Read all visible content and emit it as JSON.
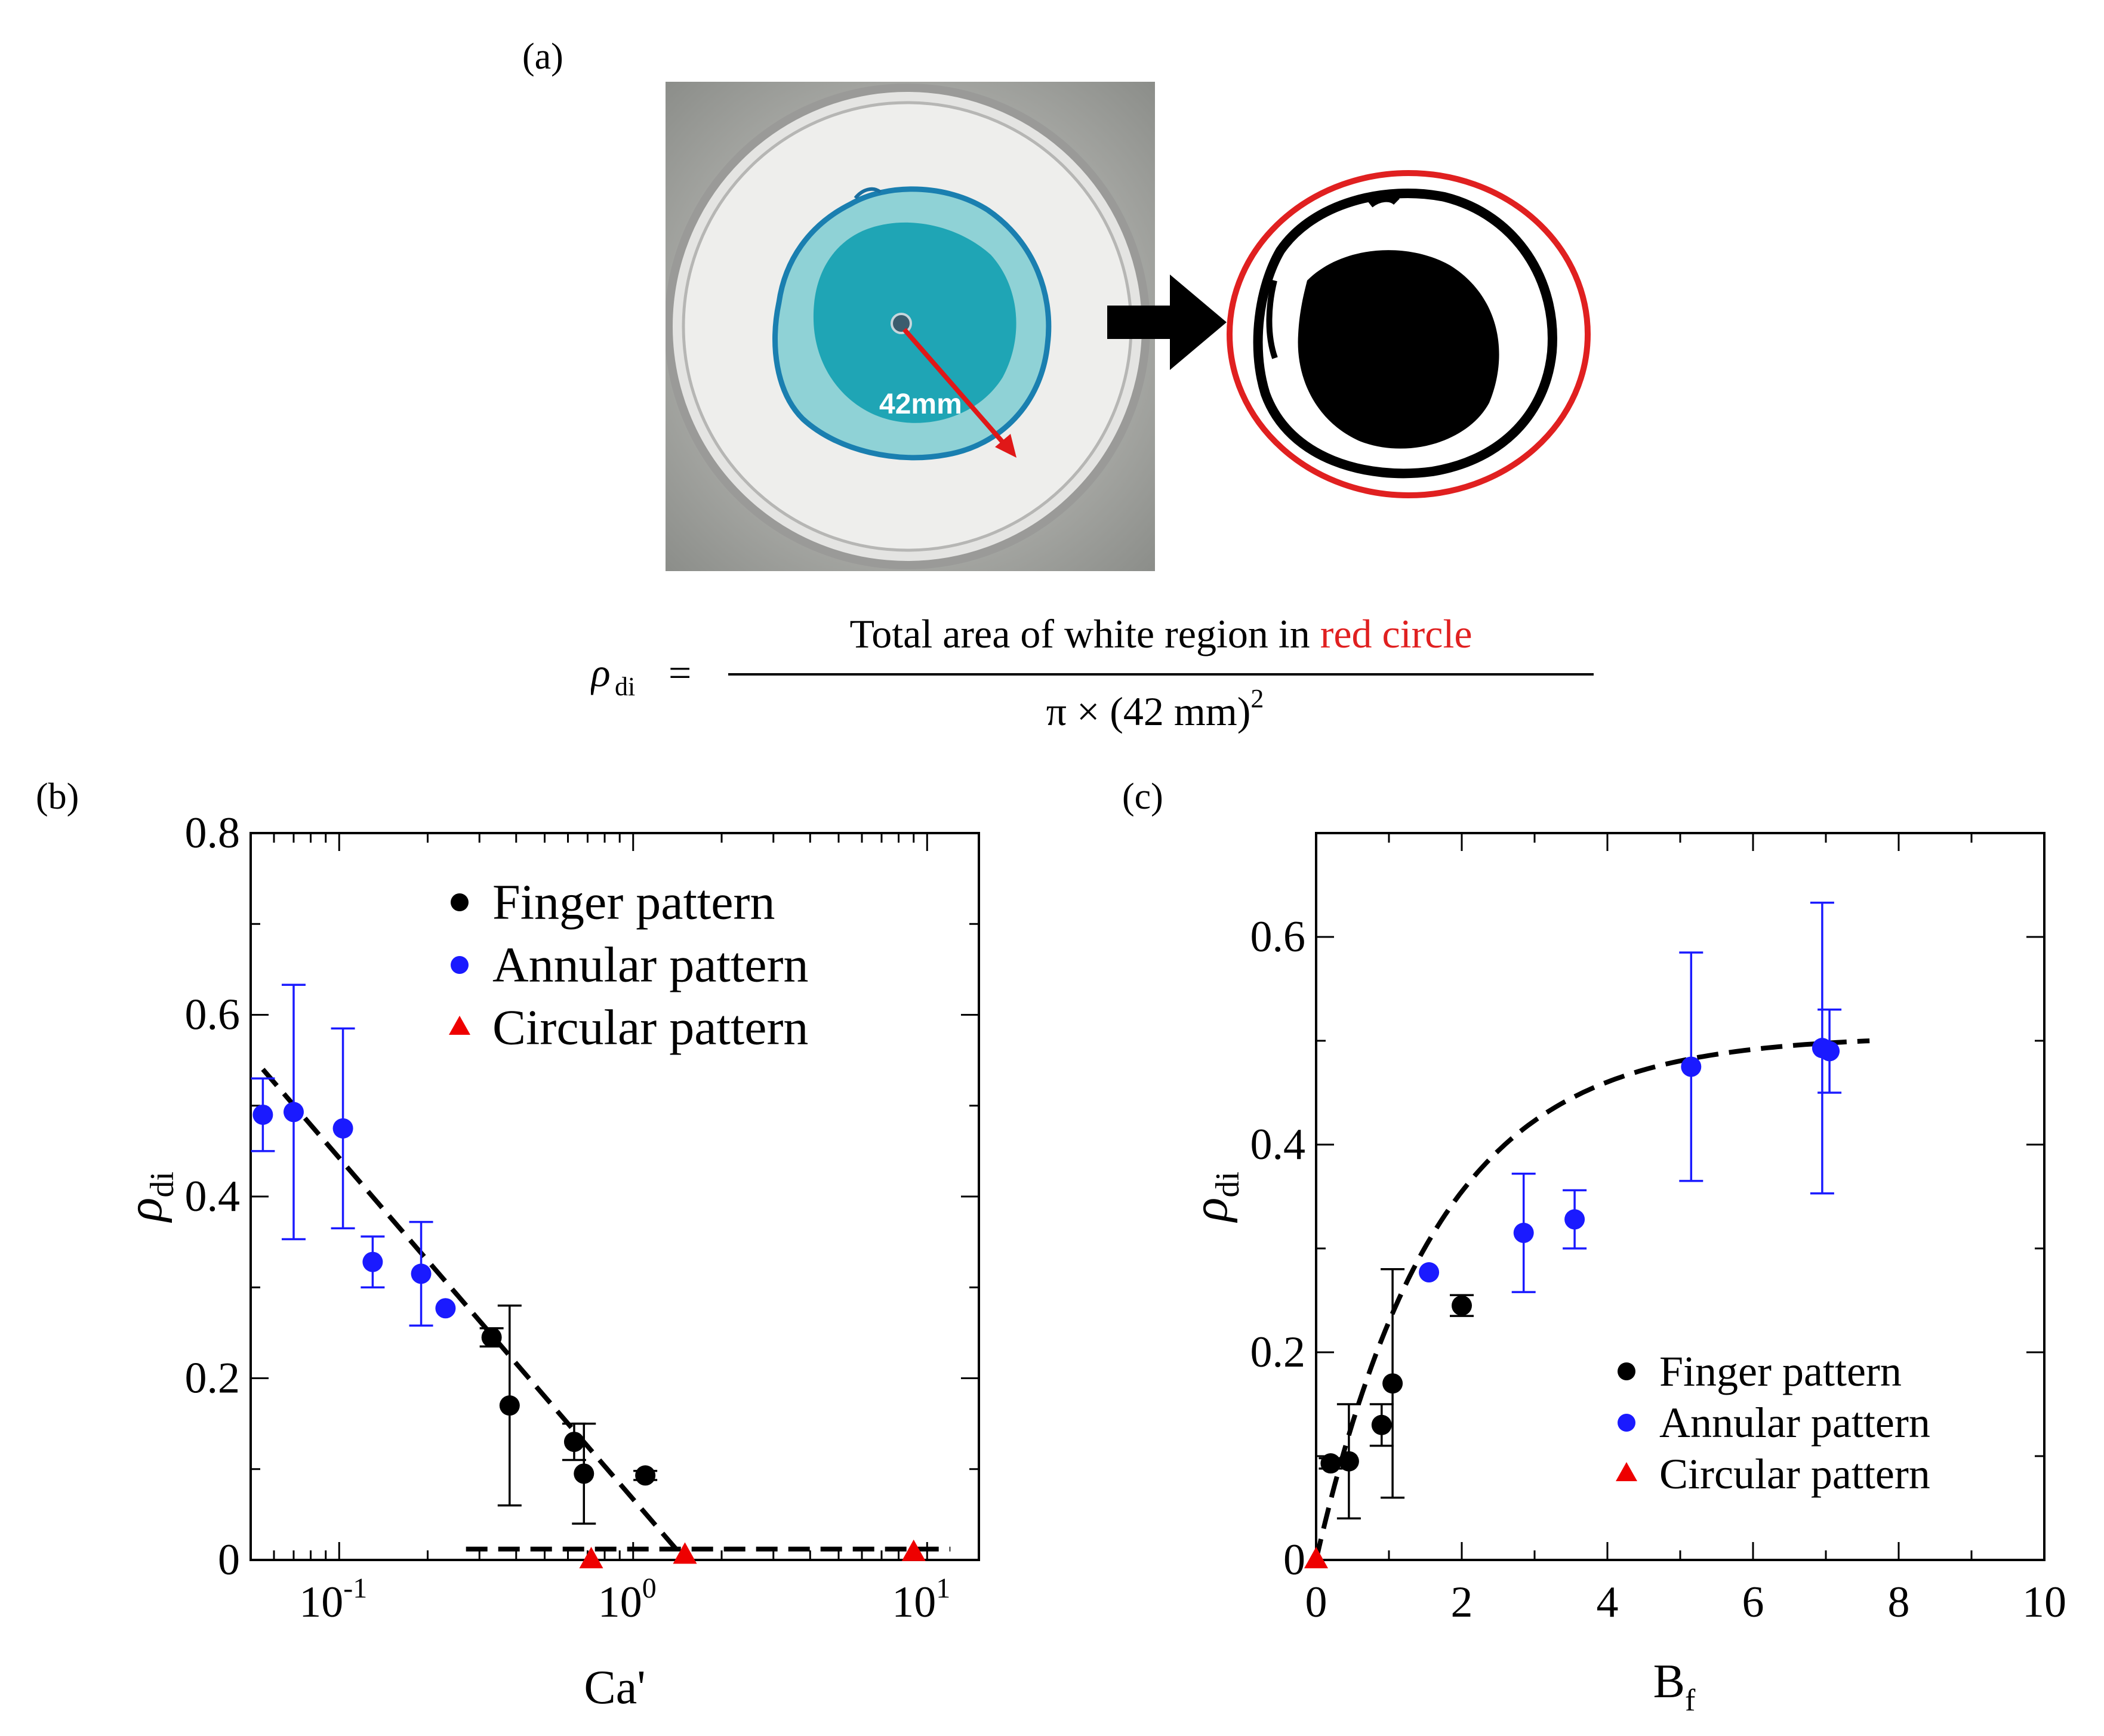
{
  "panels": {
    "a": {
      "label": "(a)",
      "scale_label": "42mm"
    },
    "b": {
      "label": "(b)"
    },
    "c": {
      "label": "(c)"
    }
  },
  "formula": {
    "lhs_symbol": "ρ",
    "lhs_subscript": "di",
    "equals": "=",
    "numerator_black": "Total area of white region in ",
    "numerator_red": "red circle",
    "denominator": "π × (42 mm)",
    "denominator_exponent": "2"
  },
  "colors": {
    "finger": "#000000",
    "annular": "#1a1aff",
    "circular": "#ee0000",
    "red_circle": "#e02020",
    "dye": "#1fa5b5"
  },
  "chart_data": [
    {
      "id": "b",
      "type": "scatter",
      "xscale": "log",
      "xlim": [
        0.05,
        15
      ],
      "ylim": [
        0,
        0.8
      ],
      "xlabel": "Ca'",
      "ylabel_symbol": "ρ",
      "ylabel_subscript": "di",
      "yticks": [
        0,
        0.2,
        0.4,
        0.6,
        0.8
      ],
      "ytick_labels": [
        "0",
        "0.2",
        "0.4",
        "0.6",
        "0.8"
      ],
      "xticks": [
        {
          "value": 0.1,
          "base": "10",
          "exp": "-1"
        },
        {
          "value": 1,
          "base": "10",
          "exp": "0"
        },
        {
          "value": 10,
          "base": "10",
          "exp": "1"
        }
      ],
      "legend": {
        "position": "top-right",
        "entries": [
          {
            "name": "Finger pattern",
            "marker": "circle",
            "color": "#000000"
          },
          {
            "name": "Annular pattern",
            "marker": "circle",
            "color": "#1a1aff"
          },
          {
            "name": "Circular pattern",
            "marker": "triangle",
            "color": "#ee0000"
          }
        ]
      },
      "series": [
        {
          "name": "Finger pattern",
          "points": [
            {
              "x": 0.33,
              "y": 0.245,
              "err": 0.01
            },
            {
              "x": 0.38,
              "y": 0.17,
              "err": 0.11
            },
            {
              "x": 0.63,
              "y": 0.13,
              "err": 0.02
            },
            {
              "x": 0.68,
              "y": 0.095,
              "err": 0.055
            },
            {
              "x": 1.1,
              "y": 0.093,
              "err": 0.005
            }
          ]
        },
        {
          "name": "Annular pattern",
          "points": [
            {
              "x": 0.055,
              "y": 0.49,
              "err": 0.04
            },
            {
              "x": 0.07,
              "y": 0.493,
              "err": 0.14
            },
            {
              "x": 0.103,
              "y": 0.475,
              "err": 0.11
            },
            {
              "x": 0.13,
              "y": 0.328,
              "err": 0.028
            },
            {
              "x": 0.19,
              "y": 0.315,
              "err": 0.057
            },
            {
              "x": 0.23,
              "y": 0.277,
              "err": 0.0
            }
          ]
        },
        {
          "name": "Circular pattern",
          "points": [
            {
              "x": 0.72,
              "y": 0.0,
              "err": 0
            },
            {
              "x": 1.5,
              "y": 0.005,
              "err": 0
            },
            {
              "x": 9.0,
              "y": 0.008,
              "err": 0
            }
          ]
        }
      ],
      "fit_lines": [
        {
          "x": [
            0.055,
            1.4
          ],
          "y": [
            0.54,
            0.012
          ]
        },
        {
          "x": [
            0.27,
            12
          ],
          "y": [
            0.012,
            0.012
          ]
        }
      ]
    },
    {
      "id": "c",
      "type": "scatter",
      "xscale": "linear",
      "xlim": [
        0,
        10
      ],
      "ylim": [
        0,
        0.7
      ],
      "xlabel_base": "B",
      "xlabel_subscript": "f",
      "ylabel_symbol": "ρ",
      "ylabel_subscript": "di",
      "yticks": [
        0,
        0.2,
        0.4,
        0.6
      ],
      "ytick_labels": [
        "0",
        "0.2",
        "0.4",
        "0.6"
      ],
      "xticks": [
        0,
        2,
        4,
        6,
        8,
        10
      ],
      "xtick_labels": [
        "0",
        "2",
        "4",
        "6",
        "8",
        "10"
      ],
      "legend": {
        "position": "bottom-right",
        "entries": [
          {
            "name": "Finger pattern",
            "marker": "circle",
            "color": "#000000"
          },
          {
            "name": "Annular pattern",
            "marker": "circle",
            "color": "#1a1aff"
          },
          {
            "name": "Circular pattern",
            "marker": "triangle",
            "color": "#ee0000"
          }
        ]
      },
      "series": [
        {
          "name": "Finger pattern",
          "points": [
            {
              "x": 0.2,
              "y": 0.093,
              "err": 0.005
            },
            {
              "x": 0.45,
              "y": 0.095,
              "err": 0.055
            },
            {
              "x": 0.9,
              "y": 0.13,
              "err": 0.02
            },
            {
              "x": 1.05,
              "y": 0.17,
              "err": 0.11
            },
            {
              "x": 2.0,
              "y": 0.245,
              "err": 0.01
            }
          ]
        },
        {
          "name": "Annular pattern",
          "points": [
            {
              "x": 1.55,
              "y": 0.277,
              "err": 0.0
            },
            {
              "x": 2.85,
              "y": 0.315,
              "err": 0.057
            },
            {
              "x": 3.55,
              "y": 0.328,
              "err": 0.028
            },
            {
              "x": 5.15,
              "y": 0.475,
              "err": 0.11
            },
            {
              "x": 6.95,
              "y": 0.493,
              "err": 0.14
            },
            {
              "x": 7.05,
              "y": 0.49,
              "err": 0.04
            }
          ]
        },
        {
          "name": "Circular pattern",
          "points": [
            {
              "x": 0.0,
              "y": 0.0,
              "err": 0
            }
          ]
        }
      ],
      "fit_curve": {
        "form": "a*(1-exp(-x/b))",
        "a": 0.505,
        "b": 1.65,
        "x_range": [
          0,
          7.6
        ]
      }
    }
  ]
}
